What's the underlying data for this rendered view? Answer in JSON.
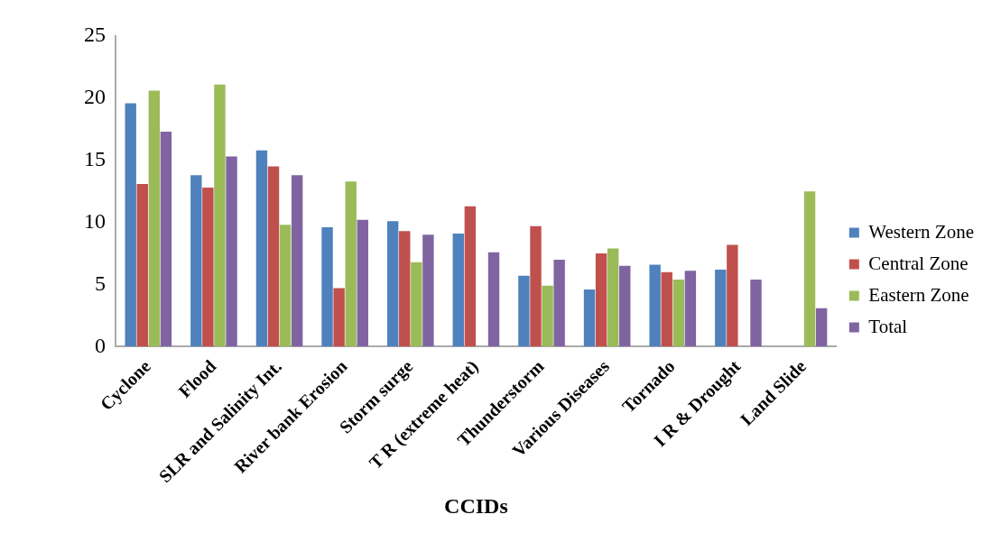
{
  "chart_data": {
    "type": "bar",
    "xlabel": "CCIDs",
    "categories": [
      "Cyclone",
      "Flood",
      "SLR and Salinity Int.",
      "River bank Erosion",
      "Storm surge",
      "T R (extreme heat)",
      "Thunderstorm",
      "Various Diseases",
      "Tornado",
      "I R & Drought",
      "Land Slide"
    ],
    "series": [
      {
        "name": "Western Zone",
        "color": "#4f81bd",
        "values": [
          19.6,
          13.8,
          15.8,
          9.6,
          10.1,
          9.1,
          5.7,
          4.6,
          6.6,
          6.2,
          0
        ]
      },
      {
        "name": "Central Zone",
        "color": "#c0504d",
        "values": [
          13.1,
          12.8,
          14.5,
          4.7,
          9.3,
          11.3,
          9.7,
          7.5,
          6.0,
          8.2,
          0
        ]
      },
      {
        "name": "Eastern Zone",
        "color": "#9bbb59",
        "values": [
          20.6,
          21.1,
          9.8,
          13.3,
          6.8,
          0,
          4.9,
          7.9,
          5.4,
          0,
          12.5
        ]
      },
      {
        "name": "Total",
        "color": "#8064a2",
        "values": [
          17.3,
          15.3,
          13.8,
          10.2,
          9.0,
          7.6,
          7.0,
          6.5,
          6.1,
          5.4,
          3.1
        ]
      }
    ],
    "ylim": [
      0,
      25
    ],
    "yticks": [
      0,
      5,
      10,
      15,
      20,
      25
    ],
    "grid": false,
    "legend": "right"
  }
}
